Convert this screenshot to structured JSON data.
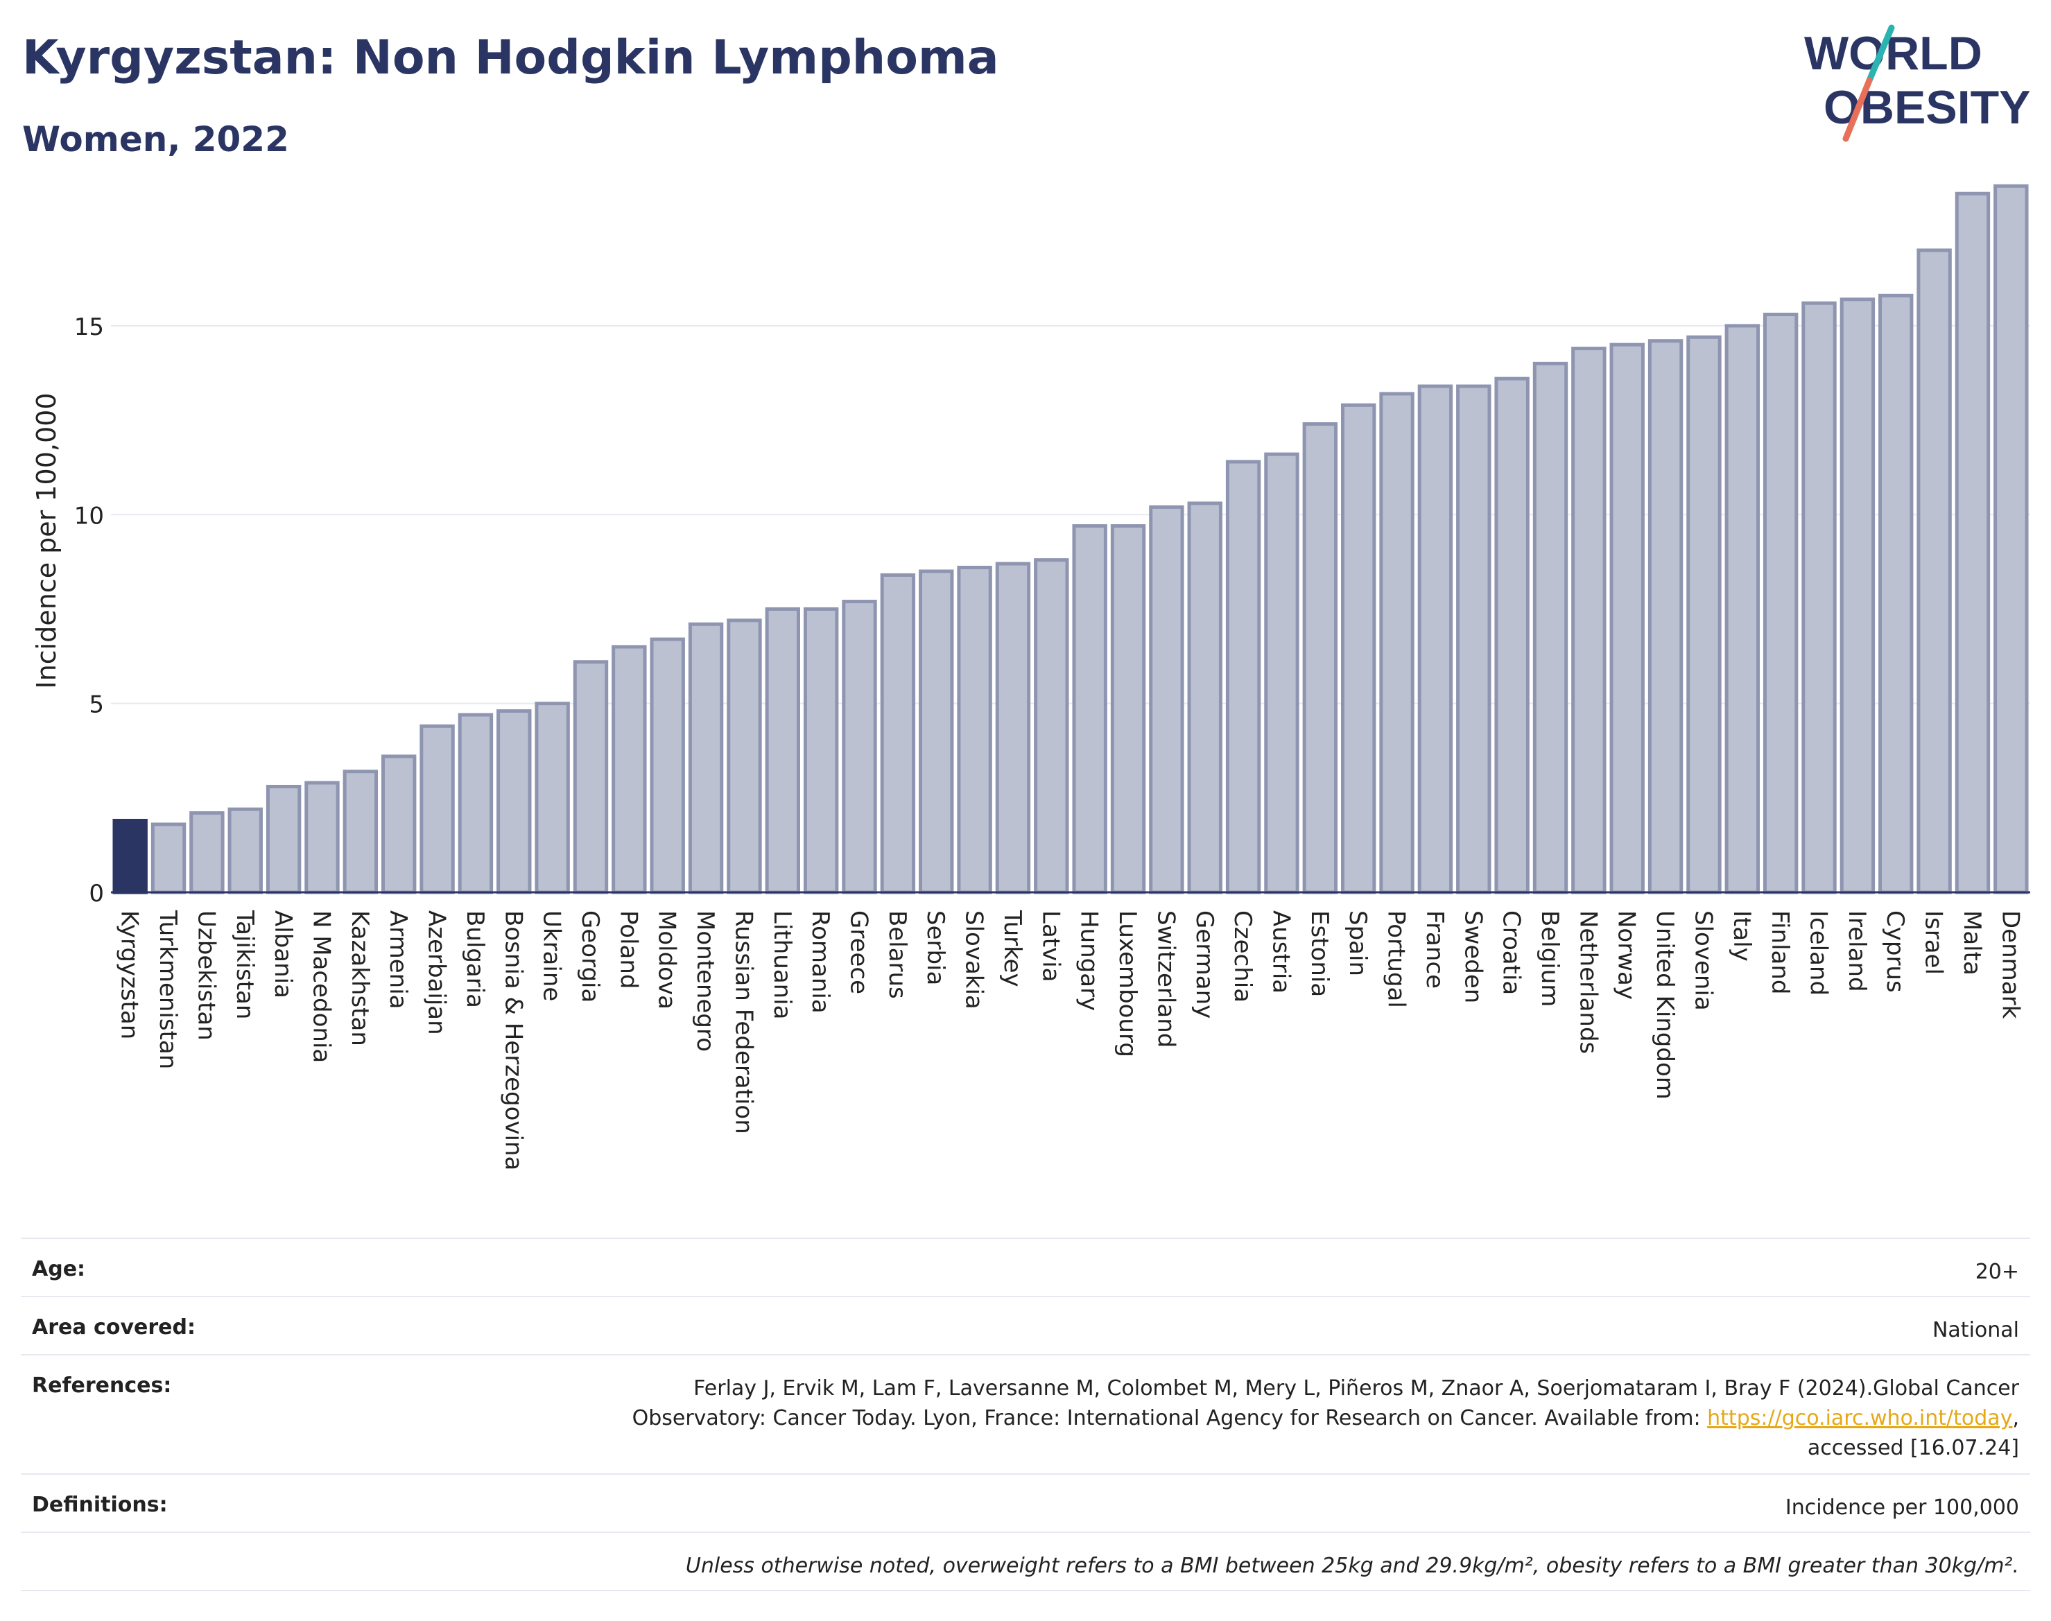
{
  "header": {
    "title": "Kyrgyzstan: Non Hodgkin Lymphoma",
    "subtitle": "Women, 2022",
    "logo_word1": "WORLD",
    "logo_word2": "OBESITY"
  },
  "colors": {
    "highlight": "#2b3563",
    "bar": "#bcc1d1",
    "bar_stroke": "#8e95b0",
    "text": "#2b3563",
    "link": "#e6a817",
    "logo_slash_top": "#2bb3b1",
    "logo_slash_bottom": "#e8705a"
  },
  "chart_data": {
    "type": "bar",
    "title": "",
    "xlabel": "",
    "ylabel": "Incidence per 100,000",
    "ylim": [
      0,
      19
    ],
    "yticks": [
      0,
      5,
      10,
      15
    ],
    "grid": true,
    "highlight": "Kyrgyzstan",
    "categories": [
      "Kyrgyzstan",
      "Turkmenistan",
      "Uzbekistan",
      "Tajikistan",
      "Albania",
      "N Macedonia",
      "Kazakhstan",
      "Armenia",
      "Azerbaijan",
      "Bulgaria",
      "Bosnia & Herzegovina",
      "Ukraine",
      "Georgia",
      "Poland",
      "Moldova",
      "Montenegro",
      "Russian Federation",
      "Lithuania",
      "Romania",
      "Greece",
      "Belarus",
      "Serbia",
      "Slovakia",
      "Turkey",
      "Latvia",
      "Hungary",
      "Luxembourg",
      "Switzerland",
      "Germany",
      "Czechia",
      "Austria",
      "Estonia",
      "Spain",
      "Portugal",
      "France",
      "Sweden",
      "Croatia",
      "Belgium",
      "Netherlands",
      "Norway",
      "United Kingdom",
      "Slovenia",
      "Italy",
      "Finland",
      "Iceland",
      "Ireland",
      "Cyprus",
      "Israel",
      "Malta",
      "Denmark"
    ],
    "values": [
      1.9,
      1.8,
      2.1,
      2.2,
      2.8,
      2.9,
      3.2,
      3.6,
      4.4,
      4.7,
      4.8,
      5.0,
      6.1,
      6.5,
      6.7,
      7.1,
      7.2,
      7.5,
      7.5,
      7.7,
      8.4,
      8.5,
      8.6,
      8.7,
      8.8,
      9.7,
      9.7,
      10.2,
      10.3,
      11.4,
      11.6,
      12.4,
      12.9,
      13.2,
      13.4,
      13.4,
      13.6,
      14.0,
      14.4,
      14.5,
      14.6,
      14.7,
      15.0,
      15.3,
      15.6,
      15.7,
      15.8,
      17.0,
      18.5,
      18.7
    ]
  },
  "info": {
    "age_label": "Age:",
    "age_value": "20+",
    "area_label": "Area covered:",
    "area_value": "National",
    "references_label": "References:",
    "references_text": "Ferlay J, Ervik M, Lam F, Laversanne M, Colombet M, Mery L, Piñeros M, Znaor A, Soerjomataram I, Bray F (2024).Global Cancer Observatory: Cancer Today. Lyon, France: International Agency for Research on Cancer. Available from:",
    "references_link": "https://gco.iarc.who.int/today",
    "references_suffix": ", accessed [16.07.24]",
    "definitions_label": "Definitions:",
    "definitions_value": "Incidence per 100,000",
    "note": "Unless otherwise noted, overweight refers to a BMI between 25kg and 29.9kg/m², obesity refers to a BMI greater than 30kg/m²."
  }
}
